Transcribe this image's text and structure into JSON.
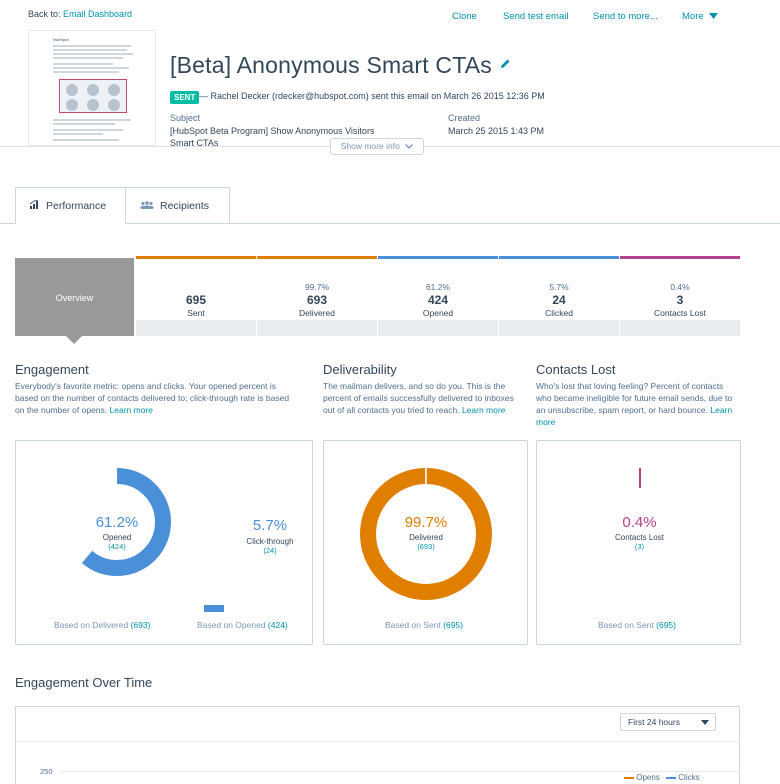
{
  "header": {
    "back_prefix": "Back to:",
    "back_link": "Email Dashboard",
    "actions": {
      "clone": "Clone",
      "send_test": "Send test email",
      "send_to_more": "Send to more...",
      "more": "More"
    },
    "title": "[Beta] Anonymous Smart CTAs",
    "status_badge": "SENT",
    "sender_line": "— Rachel Decker (rdecker@hubspot.com) sent this email on March 26 2015 12:36 PM",
    "subject_label": "Subject",
    "subject_line1": "[HubSpot Beta Program] Show Anonymous Visitors",
    "subject_line2": "Smart CTAs",
    "created_label": "Created",
    "created_value": "March 25 2015 1:43 PM",
    "show_more": "Show more info",
    "thumbnail_brand": "HubSpot"
  },
  "tabs": [
    {
      "label": "Performance",
      "icon": "bar-chart-icon"
    },
    {
      "label": "Recipients",
      "icon": "people-icon"
    }
  ],
  "stats": {
    "overview_label": "Overview",
    "items": [
      {
        "pct": "",
        "num": "695",
        "label": "Sent",
        "color": "#e07e00"
      },
      {
        "pct": "99.7%",
        "num": "693",
        "label": "Delivered",
        "color": "#e07e00"
      },
      {
        "pct": "61.2%",
        "num": "424",
        "label": "Opened",
        "color": "#4a90d9"
      },
      {
        "pct": "5.7%",
        "num": "24",
        "label": "Clicked",
        "color": "#4a90d9"
      },
      {
        "pct": "0.4%",
        "num": "3",
        "label": "Contacts Lost",
        "color": "#b5428f"
      }
    ]
  },
  "engagement": {
    "title": "Engagement",
    "desc_line1": "Everybody's favorite metric: opens and clicks. Your opened percent is",
    "desc_line2": "based on the number of contacts delivered to; click-through rate is based",
    "desc_line3": "on the number of opens.",
    "learn_more": "Learn more",
    "opened_pct": "61.2%",
    "opened_label": "Opened",
    "opened_count": "(424)",
    "opened_value": 61.2,
    "click_pct": "5.7%",
    "click_label": "Click-through",
    "click_count": "(24)",
    "click_value": 5.7,
    "based_delivered_prefix": "Based on Delivered",
    "based_delivered_count": "(693)",
    "based_opened_prefix": "Based on Opened",
    "based_opened_count": "(424)"
  },
  "deliverability": {
    "title": "Deliverability",
    "desc_line1": "The mailman delivers, and so do you. This is the",
    "desc_line2": "percent of emails successfully delivered to inboxes",
    "desc_line3": "out of all contacts you tried to reach.",
    "learn_more": "Learn more",
    "pct": "99.7%",
    "label": "Delivered",
    "count": "(693)",
    "value": 99.7,
    "based_prefix": "Based on Sent",
    "based_count": "(695)"
  },
  "contacts_lost": {
    "title": "Contacts Lost",
    "desc_line1": "Who's lost that loving feeling? Percent of contacts",
    "desc_line2": "who became ineligible for future email sends, due to",
    "desc_line3": "an unsubscribe, spam report, or hard bounce.",
    "learn_more_a": "Learn",
    "learn_more_b": "more",
    "pct": "0.4%",
    "label": "Contacts Lost",
    "count": "(3)",
    "value": 0.4,
    "based_prefix": "Based on Sent",
    "based_count": "(695)"
  },
  "engagement_over_time": {
    "title": "Engagement Over Time",
    "range": "First 24 hours",
    "y_tick_top": "250",
    "legend_opens": "Opens",
    "legend_clicks": "Clicks"
  },
  "colors": {
    "orange": "#e07e00",
    "blue": "#4a90d9",
    "magenta": "#b5428f",
    "teal": "#00bda5"
  }
}
